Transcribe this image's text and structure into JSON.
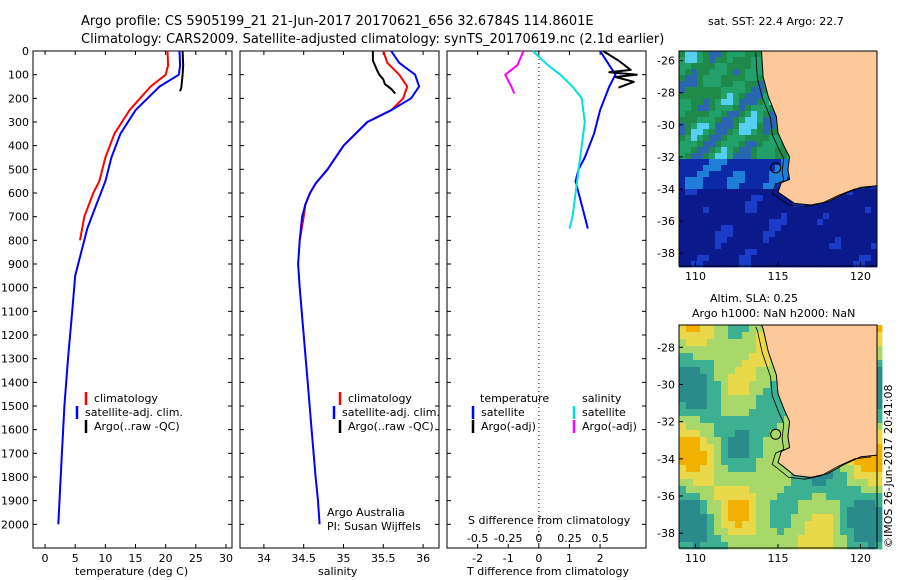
{
  "header": {
    "line1": "Argo profile: CS 5905199_21 21-Jun-2017 20170621_656 32.6784S 114.8601E",
    "line2": "Climatology: CARS2009. Satellite-adjusted climatology: synTS_20170619.nc (2.1d earlier)"
  },
  "colors": {
    "climatology": "#ff0000",
    "satellite": "#0000ff",
    "argo": "#000000",
    "salinity_satellite": "#00e0e0",
    "salinity_argo": "#ff00ff",
    "land": "#fdc89a"
  },
  "chart_data": [
    {
      "id": "temperature",
      "type": "line",
      "xlabel": "temperature (deg C)",
      "ylabel": "",
      "xlim": [
        -2,
        31
      ],
      "ylim": [
        2100,
        0
      ],
      "xticks": [
        0,
        5,
        10,
        15,
        20,
        25,
        30
      ],
      "xtick_labels": [
        "0",
        "5",
        "10",
        "15",
        "20",
        "25",
        "30"
      ],
      "yticks": [
        0,
        100,
        200,
        300,
        400,
        500,
        600,
        700,
        800,
        900,
        1000,
        1100,
        1200,
        1300,
        1400,
        1500,
        1600,
        1700,
        1800,
        1900,
        2000
      ],
      "ytick_labels": [
        "0",
        "100",
        "200",
        "300",
        "400",
        "500",
        "600",
        "700",
        "800",
        "900",
        "1000",
        "1100",
        "1200",
        "1300",
        "1400",
        "1500",
        "1600",
        "1700",
        "1800",
        "1900",
        "2000"
      ],
      "series": [
        {
          "name": "climatology",
          "color": "#ff0000",
          "x": [
            20.3,
            20.4,
            20.0,
            17.5,
            14.0,
            11.5,
            10.0,
            9.0,
            8.0,
            6.5,
            5.8
          ],
          "y": [
            0,
            60,
            100,
            150,
            250,
            350,
            450,
            550,
            600,
            700,
            800
          ]
        },
        {
          "name": "satellite-adj. clim.",
          "color": "#0000ff",
          "x": [
            22.3,
            22.4,
            22.2,
            19.0,
            15.0,
            12.5,
            11.0,
            10.0,
            8.5,
            7.0,
            6.0,
            5.0,
            4.5,
            3.8,
            3.2,
            2.8,
            2.4,
            2.2
          ],
          "y": [
            0,
            60,
            100,
            150,
            250,
            350,
            450,
            550,
            650,
            750,
            850,
            950,
            1100,
            1300,
            1500,
            1700,
            1900,
            2000
          ]
        },
        {
          "name": "Argo(..raw -QC)",
          "color": "#000000",
          "x": [
            22.8,
            22.9,
            22.8,
            22.7,
            22.6,
            22.4
          ],
          "y": [
            0,
            60,
            100,
            130,
            155,
            170
          ]
        }
      ],
      "legend": [
        {
          "label": "climatology",
          "color": "#ff0000"
        },
        {
          "label": "satellite-adj. clim.",
          "color": "#0000ff"
        },
        {
          "label": "Argo(..raw -QC)",
          "color": "#000000"
        }
      ]
    },
    {
      "id": "salinity",
      "type": "line",
      "xlabel": "salinity",
      "xlim": [
        33.7,
        36.2
      ],
      "ylim": [
        2100,
        0
      ],
      "xticks": [
        34,
        34.5,
        35,
        35.5,
        36
      ],
      "xtick_labels": [
        "34",
        "34.5",
        "35",
        "35.5",
        "36"
      ],
      "series": [
        {
          "name": "climatology",
          "color": "#ff0000",
          "x": [
            35.5,
            35.55,
            35.7,
            35.8,
            35.75,
            35.6,
            35.3,
            35.0,
            34.8,
            34.65,
            34.58,
            34.52,
            34.5,
            34.45
          ],
          "y": [
            0,
            50,
            100,
            150,
            200,
            250,
            300,
            400,
            500,
            560,
            600,
            650,
            700,
            800
          ]
        },
        {
          "name": "satellite-adj. clim.",
          "color": "#0000ff",
          "x": [
            35.6,
            35.7,
            35.9,
            35.95,
            35.85,
            35.6,
            35.3,
            35.0,
            34.8,
            34.65,
            34.58,
            34.52,
            34.48,
            34.45,
            34.43,
            34.45,
            34.5,
            34.55,
            34.6,
            34.65,
            34.68,
            34.7
          ],
          "y": [
            0,
            50,
            100,
            150,
            200,
            250,
            300,
            400,
            500,
            560,
            600,
            650,
            700,
            800,
            900,
            1000,
            1200,
            1400,
            1600,
            1800,
            1900,
            2000
          ]
        },
        {
          "name": "Argo(..raw -QC)",
          "color": "#000000",
          "x": [
            35.37,
            35.37,
            35.42,
            35.45,
            35.5,
            35.52,
            35.6,
            35.65
          ],
          "y": [
            0,
            40,
            80,
            100,
            120,
            140,
            160,
            180
          ]
        }
      ],
      "legend": [
        {
          "label": "climatology",
          "color": "#ff0000"
        },
        {
          "label": "satellite-adj. clim.",
          "color": "#0000ff"
        },
        {
          "label": "Argo(..raw -QC)",
          "color": "#000000"
        }
      ],
      "annotations": [
        "Argo Australia",
        "PI: Susan Wijffels"
      ]
    },
    {
      "id": "difference",
      "type": "line",
      "xlabel": "T difference from climatology",
      "xlabel_top": "S difference from climatology",
      "xlim": [
        -3,
        3.5
      ],
      "ylim": [
        2100,
        0
      ],
      "xticks": [
        -2,
        -1,
        0,
        1,
        2
      ],
      "xtick_labels": [
        "-2",
        "-1",
        "0",
        "1",
        "2"
      ],
      "s_tick_labels": [
        "-0.5",
        "-0.25",
        "0",
        "0.25",
        "0.5"
      ],
      "series": [
        {
          "name": "temperature satellite",
          "color": "#0000ff",
          "x": [
            2.0,
            2.3,
            2.5,
            2.3,
            2.0,
            1.8,
            1.5,
            1.3,
            1.2,
            1.3,
            1.4,
            1.5,
            1.6
          ],
          "y": [
            0,
            60,
            100,
            150,
            250,
            350,
            450,
            500,
            550,
            600,
            650,
            700,
            750
          ]
        },
        {
          "name": "temperature Argo(-adj)",
          "color": "#000000",
          "x": [
            2.1,
            2.6,
            3.0,
            2.3,
            3.2,
            2.5,
            3.1,
            2.6
          ],
          "y": [
            0,
            40,
            80,
            90,
            100,
            110,
            130,
            155
          ]
        },
        {
          "name": "salinity satellite",
          "color": "#00e0e0",
          "x": [
            -0.2,
            0.3,
            0.7,
            1.1,
            1.4,
            1.5,
            1.4,
            1.3,
            1.2,
            1.1,
            1.0
          ],
          "y": [
            0,
            60,
            100,
            150,
            200,
            300,
            400,
            500,
            600,
            700,
            750
          ]
        },
        {
          "name": "salinity Argo(-adj)",
          "color": "#ff00ff",
          "x": [
            -0.5,
            -0.7,
            -1.1,
            -0.9,
            -0.8
          ],
          "y": [
            0,
            60,
            100,
            150,
            180
          ]
        }
      ],
      "legend_headers": [
        "temperature",
        "salinity"
      ],
      "legend": [
        {
          "label": "satellite",
          "color": "#0000ff",
          "group": "temperature"
        },
        {
          "label": "Argo(-adj)",
          "color": "#000000",
          "group": "temperature"
        },
        {
          "label": "satellite",
          "color": "#00e0e0",
          "group": "salinity"
        },
        {
          "label": "Argo(-adj)",
          "color": "#ff00ff",
          "group": "salinity"
        }
      ]
    },
    {
      "id": "sst_map",
      "type": "heatmap",
      "title": "sat. SST: 22.4 Argo: 22.7",
      "xticks": [
        "110",
        "115",
        "120"
      ],
      "yticks": [
        "-26",
        "-28",
        "-30",
        "-32",
        "-34",
        "-36",
        "-38"
      ],
      "argo_position": {
        "lon": 114.86,
        "lat": -32.68
      }
    },
    {
      "id": "sla_map",
      "type": "heatmap",
      "title_line1": "Altim. SLA: 0.25",
      "title_line2": "Argo h1000: NaN h2000: NaN",
      "xticks": [
        "110",
        "115",
        "120"
      ],
      "yticks": [
        "-28",
        "-30",
        "-32",
        "-34",
        "-36",
        "-38"
      ],
      "argo_position": {
        "lon": 114.86,
        "lat": -32.68
      }
    }
  ],
  "footer": {
    "credit": "©IMOS 26-Jun-2017 20:41:08"
  }
}
